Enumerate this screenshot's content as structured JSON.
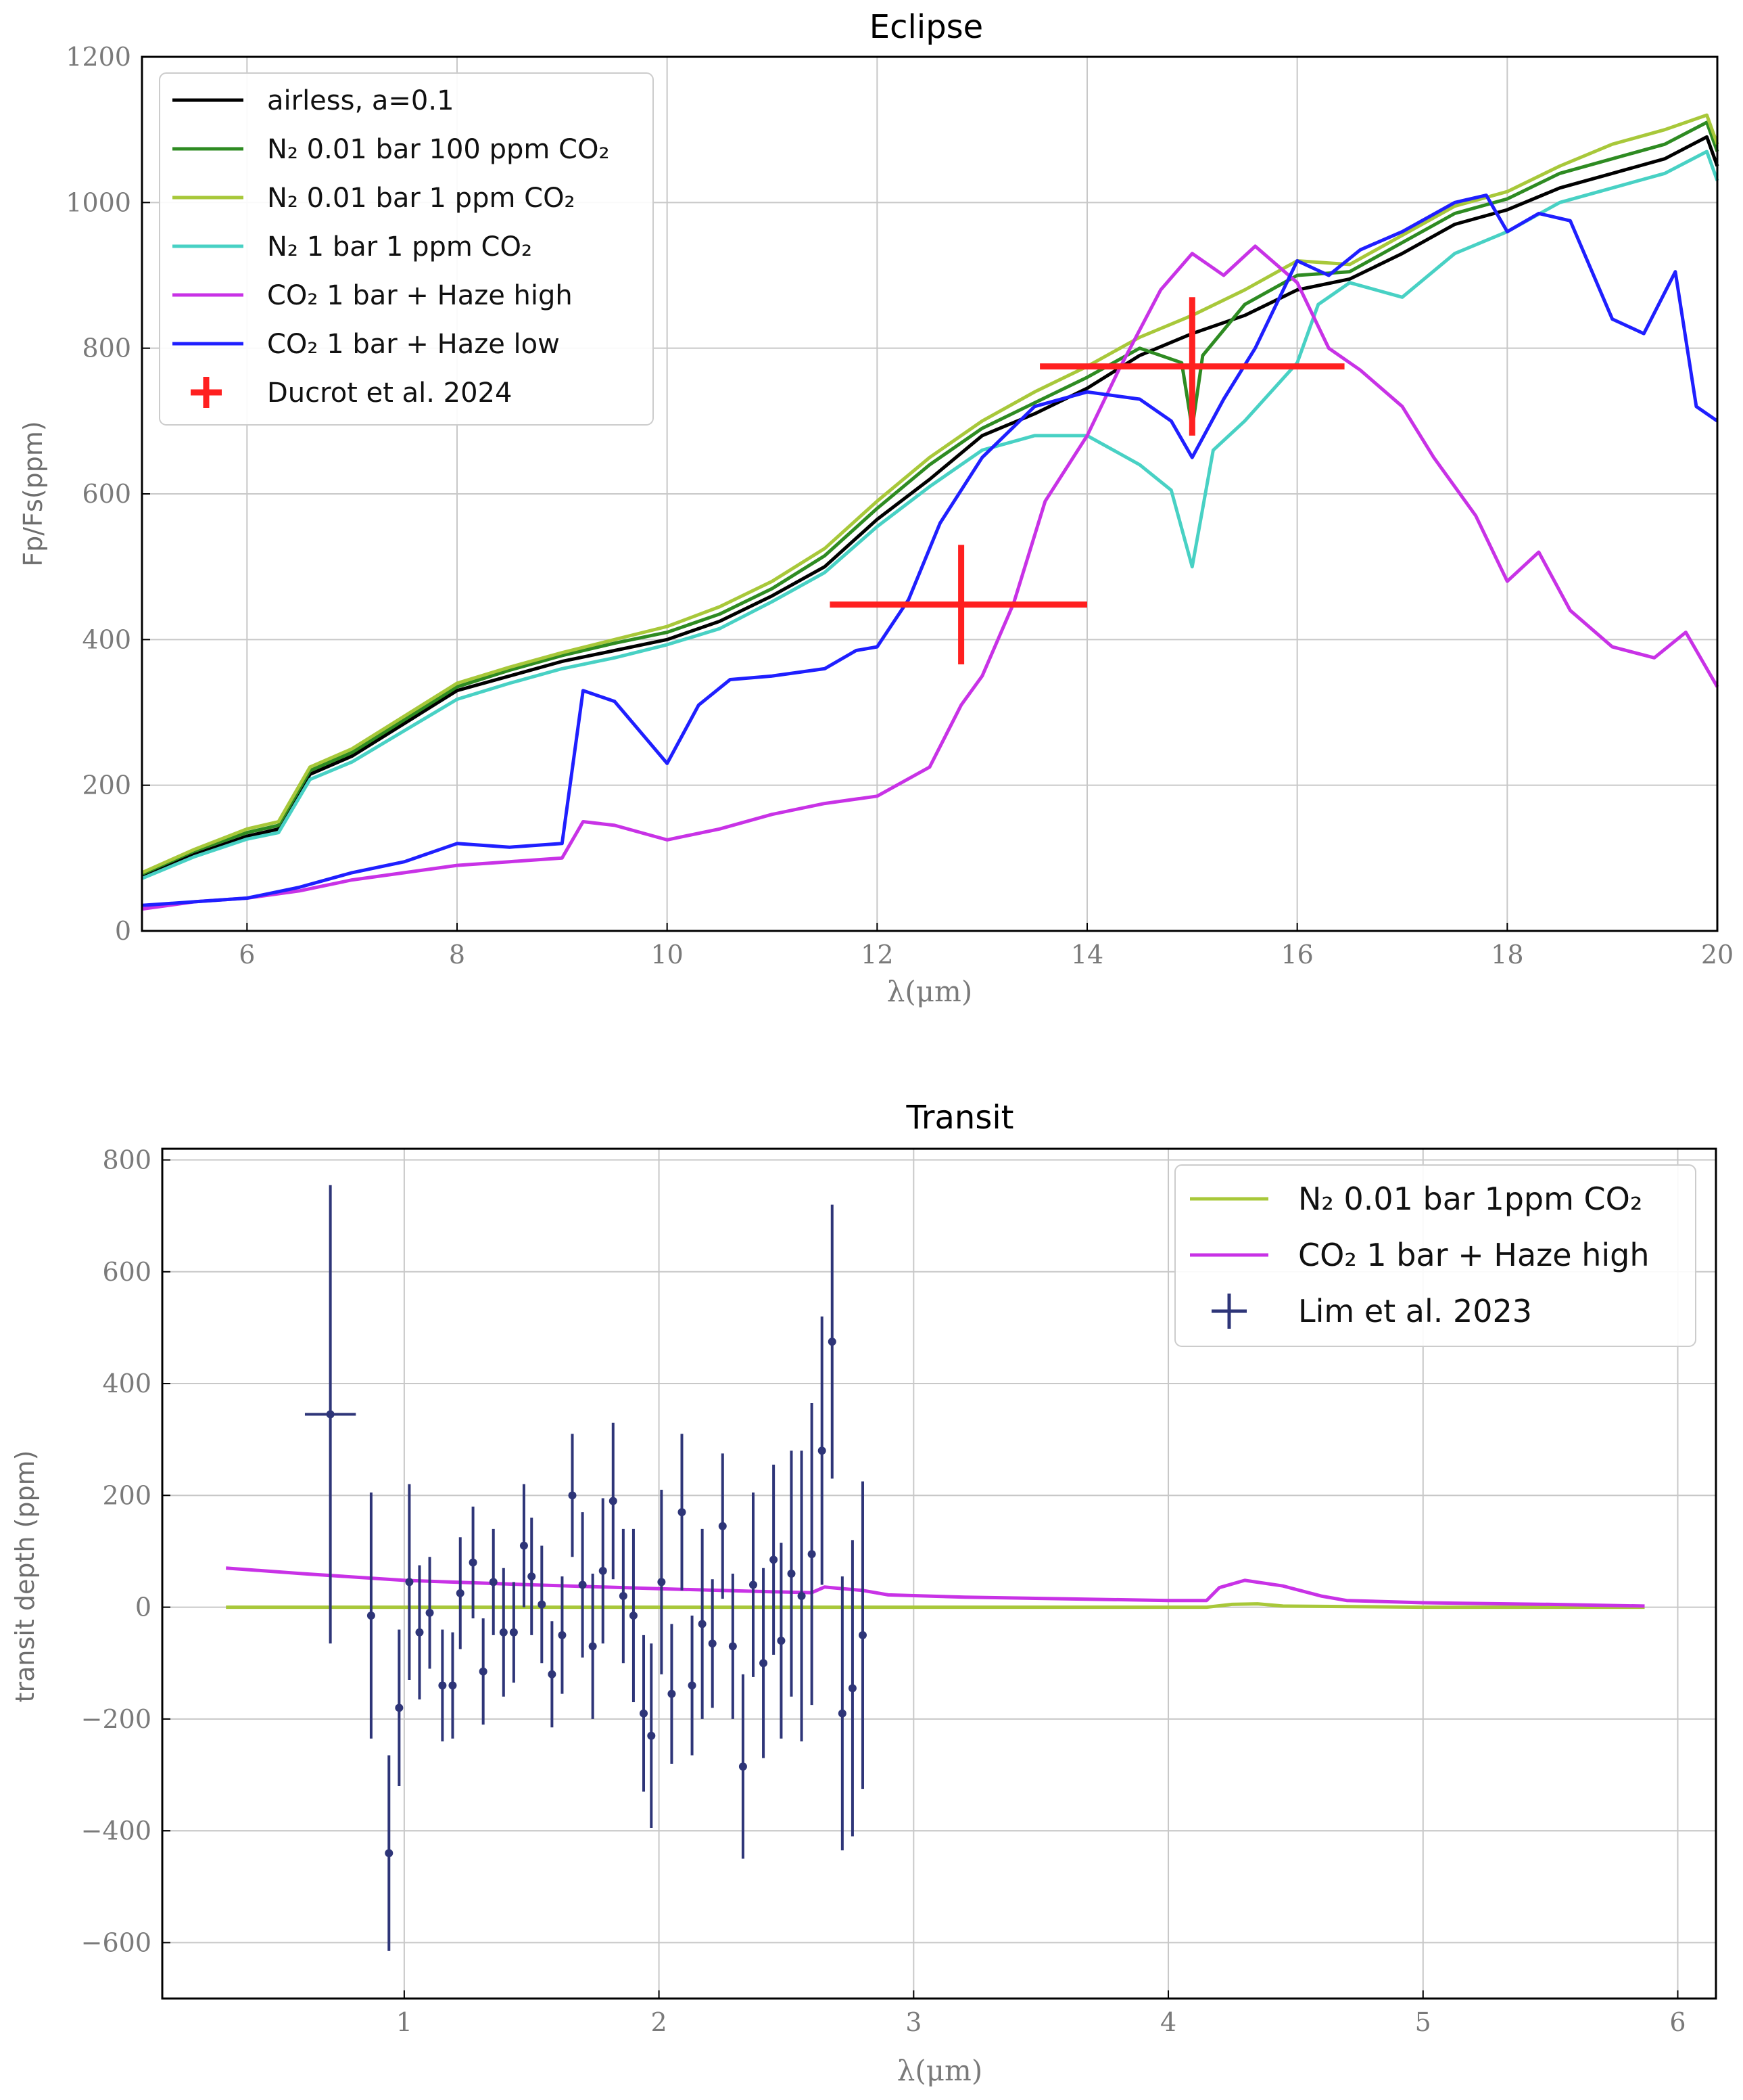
{
  "chart_data": [
    {
      "type": "line",
      "title": "Eclipse",
      "xlabel": "λ(μm)",
      "ylabel": "Fp/Fs(ppm)",
      "xlim": [
        5,
        20
      ],
      "ylim": [
        0,
        1200
      ],
      "xticks": [
        6,
        8,
        10,
        12,
        14,
        16,
        18,
        20
      ],
      "yticks": [
        0,
        200,
        400,
        600,
        800,
        1000,
        1200
      ],
      "grid": true,
      "legend_position": "top-left",
      "series": [
        {
          "name": "airless, a=0.1",
          "color": "#000000",
          "x": [
            5.0,
            5.5,
            6.0,
            6.3,
            6.6,
            7.0,
            7.5,
            8.0,
            8.5,
            9.0,
            9.5,
            10.0,
            10.5,
            11.0,
            11.5,
            12.0,
            12.5,
            13.0,
            13.5,
            14.0,
            14.5,
            15.0,
            15.5,
            16.0,
            16.5,
            17.0,
            17.5,
            18.0,
            18.5,
            19.0,
            19.5,
            19.9,
            20.0
          ],
          "y": [
            75,
            105,
            130,
            140,
            215,
            240,
            285,
            330,
            350,
            370,
            385,
            400,
            425,
            460,
            500,
            565,
            620,
            680,
            710,
            745,
            790,
            820,
            845,
            880,
            895,
            930,
            970,
            990,
            1020,
            1040,
            1060,
            1090,
            1050
          ]
        },
        {
          "name": "N2 0.01 bar 100 ppm CO2",
          "color": "#2e8b22",
          "x": [
            5.0,
            5.5,
            6.0,
            6.3,
            6.6,
            7.0,
            7.5,
            8.0,
            8.5,
            9.0,
            9.5,
            10.0,
            10.5,
            11.0,
            11.5,
            12.0,
            12.5,
            13.0,
            13.5,
            14.0,
            14.5,
            14.9,
            15.0,
            15.1,
            15.5,
            16.0,
            16.5,
            17.0,
            17.5,
            18.0,
            18.5,
            19.0,
            19.5,
            19.9,
            20.0
          ],
          "y": [
            78,
            110,
            135,
            145,
            220,
            245,
            290,
            335,
            358,
            378,
            395,
            410,
            435,
            470,
            515,
            580,
            640,
            690,
            725,
            760,
            800,
            780,
            690,
            790,
            860,
            900,
            905,
            945,
            985,
            1005,
            1040,
            1060,
            1080,
            1110,
            1070
          ]
        },
        {
          "name": "N2 0.01 bar 1 ppm CO2",
          "color": "#a8c83a",
          "x": [
            5.0,
            5.5,
            6.0,
            6.3,
            6.6,
            7.0,
            7.5,
            8.0,
            8.5,
            9.0,
            9.5,
            10.0,
            10.5,
            11.0,
            11.5,
            12.0,
            12.5,
            13.0,
            13.5,
            14.0,
            14.5,
            15.0,
            15.5,
            16.0,
            16.5,
            17.0,
            17.5,
            18.0,
            18.5,
            19.0,
            19.5,
            19.9,
            20.0
          ],
          "y": [
            80,
            112,
            140,
            150,
            225,
            250,
            295,
            340,
            362,
            382,
            400,
            418,
            445,
            480,
            525,
            590,
            650,
            700,
            740,
            775,
            815,
            845,
            880,
            920,
            915,
            955,
            995,
            1015,
            1050,
            1080,
            1100,
            1120,
            1080
          ]
        },
        {
          "name": "N2 1 bar 1 ppm CO2",
          "color": "#48d1c4",
          "x": [
            5.0,
            5.5,
            6.0,
            6.3,
            6.6,
            7.0,
            7.5,
            8.0,
            8.5,
            9.0,
            9.5,
            10.0,
            10.5,
            11.0,
            11.5,
            12.0,
            12.5,
            13.0,
            13.5,
            14.0,
            14.5,
            14.8,
            15.0,
            15.2,
            15.5,
            16.0,
            16.2,
            16.5,
            17.0,
            17.5,
            18.0,
            18.5,
            19.0,
            19.5,
            19.9,
            20.0
          ],
          "y": [
            72,
            102,
            126,
            135,
            208,
            232,
            275,
            318,
            340,
            360,
            375,
            393,
            415,
            452,
            492,
            555,
            610,
            660,
            680,
            680,
            640,
            605,
            500,
            660,
            700,
            780,
            860,
            890,
            870,
            930,
            960,
            1000,
            1020,
            1040,
            1070,
            1030
          ]
        },
        {
          "name": "CO2 1 bar + Haze high",
          "color": "#c832e6",
          "x": [
            5.0,
            5.5,
            6.0,
            6.5,
            7.0,
            7.5,
            8.0,
            8.5,
            9.0,
            9.2,
            9.5,
            10.0,
            10.5,
            11.0,
            11.5,
            12.0,
            12.5,
            12.8,
            13.0,
            13.3,
            13.6,
            14.0,
            14.3,
            14.7,
            15.0,
            15.3,
            15.6,
            16.0,
            16.3,
            16.6,
            17.0,
            17.3,
            17.7,
            18.0,
            18.3,
            18.6,
            19.0,
            19.4,
            19.7,
            20.0
          ],
          "y": [
            30,
            40,
            45,
            55,
            70,
            80,
            90,
            95,
            100,
            150,
            145,
            125,
            140,
            160,
            175,
            185,
            225,
            310,
            350,
            450,
            590,
            680,
            770,
            880,
            930,
            900,
            940,
            890,
            800,
            770,
            720,
            650,
            570,
            480,
            520,
            440,
            390,
            375,
            410,
            335
          ]
        },
        {
          "name": "CO2 1 bar + Haze low",
          "color": "#1f1fff",
          "x": [
            5.0,
            5.5,
            6.0,
            6.5,
            7.0,
            7.5,
            8.0,
            8.5,
            9.0,
            9.2,
            9.5,
            10.0,
            10.3,
            10.6,
            11.0,
            11.5,
            11.8,
            12.0,
            12.3,
            12.6,
            13.0,
            13.5,
            14.0,
            14.5,
            14.8,
            15.0,
            15.3,
            15.6,
            16.0,
            16.3,
            16.6,
            17.0,
            17.5,
            17.8,
            18.0,
            18.3,
            18.6,
            19.0,
            19.3,
            19.6,
            19.8,
            20.0
          ],
          "y": [
            35,
            40,
            45,
            60,
            80,
            95,
            120,
            115,
            120,
            330,
            315,
            230,
            310,
            345,
            350,
            360,
            385,
            390,
            455,
            560,
            650,
            720,
            740,
            730,
            700,
            650,
            730,
            800,
            920,
            900,
            935,
            960,
            1000,
            1010,
            960,
            985,
            975,
            840,
            820,
            905,
            720,
            700
          ]
        }
      ],
      "errorbars": [
        {
          "name": "Ducrot et al. 2024",
          "color": "#ff2020",
          "x": 12.8,
          "y": 448,
          "xerr": [
            1.25,
            1.2
          ],
          "yerr": 82
        },
        {
          "name": "Ducrot et al. 2024",
          "color": "#ff2020",
          "x": 15.0,
          "y": 775,
          "xerr": [
            1.45,
            1.45
          ],
          "yerr": 95
        }
      ],
      "legend": [
        {
          "label": "airless, a=0.1",
          "color": "#000000",
          "kind": "line"
        },
        {
          "label": "N₂ 0.01 bar 100 ppm CO₂",
          "color": "#2e8b22",
          "kind": "line"
        },
        {
          "label": "N₂ 0.01 bar 1 ppm CO₂",
          "color": "#a8c83a",
          "kind": "line"
        },
        {
          "label": "N₂ 1 bar 1 ppm CO₂",
          "color": "#48d1c4",
          "kind": "line"
        },
        {
          "label": "CO₂ 1 bar + Haze high",
          "color": "#c832e6",
          "kind": "line"
        },
        {
          "label": "CO₂ 1 bar + Haze low",
          "color": "#1f1fff",
          "kind": "line"
        },
        {
          "label": "Ducrot et al. 2024",
          "color": "#ff2020",
          "kind": "cross"
        }
      ]
    },
    {
      "type": "line",
      "title": "Transit",
      "xlabel": "λ(μm)",
      "ylabel": "transit depth (ppm)",
      "xlim": [
        0.05,
        6.15
      ],
      "ylim": [
        -700,
        820
      ],
      "xticks": [
        1,
        2,
        3,
        4,
        5,
        6
      ],
      "yticks": [
        -600,
        -400,
        -200,
        0,
        200,
        400,
        600,
        800
      ],
      "grid": true,
      "legend_position": "top-right",
      "series": [
        {
          "name": "N2 0.01 bar 1ppm CO2",
          "color": "#a8c83a",
          "x": [
            0.3,
            1.0,
            2.0,
            3.0,
            4.15,
            4.25,
            4.35,
            4.45,
            5.0,
            5.87
          ],
          "y": [
            0,
            0,
            0,
            0,
            0,
            5,
            6,
            2,
            0,
            0
          ]
        },
        {
          "name": "CO2 1 bar + Haze high",
          "color": "#c832e6",
          "x": [
            0.3,
            0.6,
            1.0,
            1.5,
            2.0,
            2.4,
            2.6,
            2.65,
            2.7,
            2.8,
            2.9,
            3.2,
            3.6,
            4.0,
            4.15,
            4.2,
            4.3,
            4.45,
            4.6,
            4.7,
            5.0,
            5.5,
            5.87
          ],
          "y": [
            70,
            60,
            48,
            40,
            33,
            28,
            26,
            36,
            34,
            30,
            22,
            18,
            15,
            12,
            12,
            35,
            48,
            38,
            20,
            12,
            8,
            5,
            2
          ]
        }
      ],
      "errorbars": {
        "name": "Lim et al. 2023",
        "color": "#2e3578",
        "points": [
          {
            "x": 0.71,
            "y": 345,
            "yerr": 410,
            "xerr": 0.1
          },
          {
            "x": 0.87,
            "y": -15,
            "yerr": 220
          },
          {
            "x": 0.94,
            "y": -440,
            "yerr": 175
          },
          {
            "x": 0.98,
            "y": -180,
            "yerr": 140
          },
          {
            "x": 1.02,
            "y": 45,
            "yerr": 175
          },
          {
            "x": 1.06,
            "y": -45,
            "yerr": 120
          },
          {
            "x": 1.1,
            "y": -10,
            "yerr": 100
          },
          {
            "x": 1.15,
            "y": -140,
            "yerr": 100
          },
          {
            "x": 1.19,
            "y": -140,
            "yerr": 95
          },
          {
            "x": 1.22,
            "y": 25,
            "yerr": 100
          },
          {
            "x": 1.27,
            "y": 80,
            "yerr": 100
          },
          {
            "x": 1.31,
            "y": -115,
            "yerr": 95
          },
          {
            "x": 1.35,
            "y": 45,
            "yerr": 95
          },
          {
            "x": 1.39,
            "y": -45,
            "yerr": 115
          },
          {
            "x": 1.43,
            "y": -45,
            "yerr": 90
          },
          {
            "x": 1.47,
            "y": 110,
            "yerr": 110
          },
          {
            "x": 1.5,
            "y": 55,
            "yerr": 105
          },
          {
            "x": 1.54,
            "y": 5,
            "yerr": 105
          },
          {
            "x": 1.58,
            "y": -120,
            "yerr": 95
          },
          {
            "x": 1.62,
            "y": -50,
            "yerr": 105
          },
          {
            "x": 1.66,
            "y": 200,
            "yerr": 110
          },
          {
            "x": 1.7,
            "y": 40,
            "yerr": 130
          },
          {
            "x": 1.74,
            "y": -70,
            "yerr": 130
          },
          {
            "x": 1.78,
            "y": 65,
            "yerr": 130
          },
          {
            "x": 1.82,
            "y": 190,
            "yerr": 140
          },
          {
            "x": 1.86,
            "y": 20,
            "yerr": 120
          },
          {
            "x": 1.9,
            "y": -15,
            "yerr": 155
          },
          {
            "x": 1.94,
            "y": -190,
            "yerr": 140
          },
          {
            "x": 1.97,
            "y": -230,
            "yerr": 165
          },
          {
            "x": 2.01,
            "y": 45,
            "yerr": 165
          },
          {
            "x": 2.05,
            "y": -155,
            "yerr": 125
          },
          {
            "x": 2.09,
            "y": 170,
            "yerr": 140
          },
          {
            "x": 2.13,
            "y": -140,
            "yerr": 125
          },
          {
            "x": 2.17,
            "y": -30,
            "yerr": 170
          },
          {
            "x": 2.21,
            "y": -65,
            "yerr": 115
          },
          {
            "x": 2.25,
            "y": 145,
            "yerr": 130
          },
          {
            "x": 2.29,
            "y": -70,
            "yerr": 130
          },
          {
            "x": 2.33,
            "y": -285,
            "yerr": 165
          },
          {
            "x": 2.37,
            "y": 40,
            "yerr": 165
          },
          {
            "x": 2.41,
            "y": -100,
            "yerr": 170
          },
          {
            "x": 2.45,
            "y": 85,
            "yerr": 170
          },
          {
            "x": 2.48,
            "y": -60,
            "yerr": 175
          },
          {
            "x": 2.52,
            "y": 60,
            "yerr": 220
          },
          {
            "x": 2.56,
            "y": 20,
            "yerr": 260
          },
          {
            "x": 2.6,
            "y": 95,
            "yerr": 270
          },
          {
            "x": 2.64,
            "y": 280,
            "yerr": 240
          },
          {
            "x": 2.68,
            "y": 475,
            "yerr": 245
          },
          {
            "x": 2.72,
            "y": -190,
            "yerr": 245
          },
          {
            "x": 2.76,
            "y": -145,
            "yerr": 265
          },
          {
            "x": 2.8,
            "y": -50,
            "yerr": 275
          }
        ]
      },
      "legend": [
        {
          "label": "N₂ 0.01 bar 1ppm CO₂",
          "color": "#a8c83a",
          "kind": "line"
        },
        {
          "label": "CO₂ 1 bar + Haze high",
          "color": "#c832e6",
          "kind": "line"
        },
        {
          "label": "Lim et al. 2023",
          "color": "#2e3578",
          "kind": "cross"
        }
      ]
    }
  ]
}
